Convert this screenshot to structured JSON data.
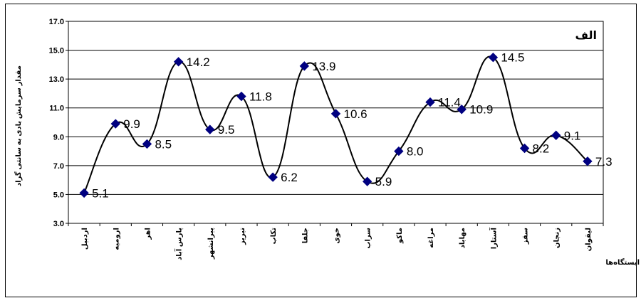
{
  "chart_data": {
    "type": "line",
    "panel_label": "الف",
    "xlabel": "ایستگاه‌ها",
    "ylabel": "مقدار سرمایش بادی به سانتی گراد",
    "ylim": [
      3.0,
      17.0
    ],
    "yticks": [
      "3.0",
      "5.0",
      "7.0",
      "9.0",
      "11.0",
      "13.0",
      "15.0",
      "17.0"
    ],
    "grid": true,
    "categories": [
      "اردبیل",
      "ارومیه",
      "اهر",
      "پارس آباد",
      "پیرانشهر",
      "تبریز",
      "تکاب",
      "جلفا",
      "خوی",
      "سراب",
      "ماکو",
      "مراغه",
      "مهاباد",
      "آستارا",
      "سقز",
      "زنجان",
      "لیقوان"
    ],
    "series": [
      {
        "values": [
          5.1,
          9.9,
          8.5,
          14.2,
          9.5,
          11.8,
          6.2,
          13.9,
          10.6,
          5.9,
          8.0,
          11.4,
          10.9,
          14.5,
          8.2,
          9.1,
          7.3
        ],
        "labels": [
          "5.1",
          "9.9",
          "8.5",
          "14.2",
          "9.5",
          "11.8",
          "6.2",
          "13.9",
          "10.6",
          "5.9",
          "8.0",
          "11.4",
          "10.9",
          "14.5",
          "8.2",
          "9.1",
          "7.3"
        ],
        "color": "#000080",
        "line_color": "#000000",
        "marker": "diamond",
        "smooth": true
      }
    ]
  }
}
